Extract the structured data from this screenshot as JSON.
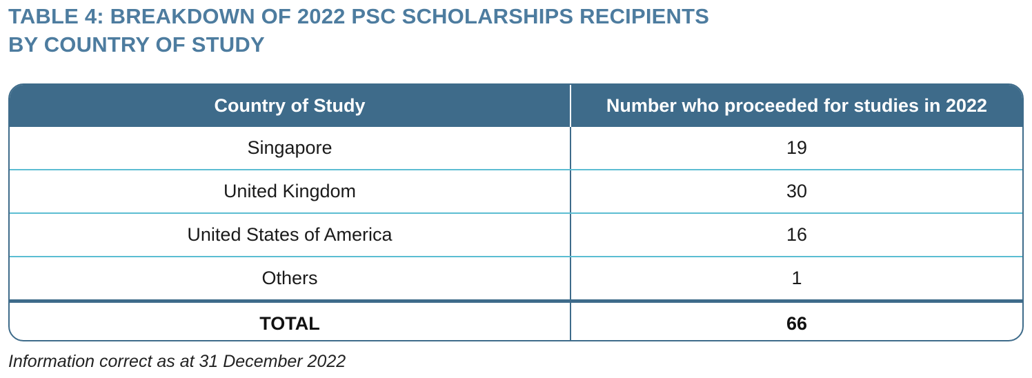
{
  "title": {
    "line1": "TABLE 4: BREAKDOWN OF 2022 PSC SCHOLARSHIPS RECIPIENTS",
    "line2": "BY COUNTRY OF STUDY"
  },
  "table": {
    "headers": [
      "Country of Study",
      "Number who proceeded for studies in 2022"
    ],
    "rows": [
      {
        "country": "Singapore",
        "number": "19"
      },
      {
        "country": "United Kingdom",
        "number": "30"
      },
      {
        "country": "United States of America",
        "number": "16"
      },
      {
        "country": "Others",
        "number": "1"
      }
    ],
    "total": {
      "label": "TOTAL",
      "number": "66"
    }
  },
  "note": "Information correct as at 31 December 2022",
  "colors": {
    "title": "#4d7c9f",
    "header_bg": "#3e6b8a",
    "row_divider": "#5bbdd2"
  }
}
